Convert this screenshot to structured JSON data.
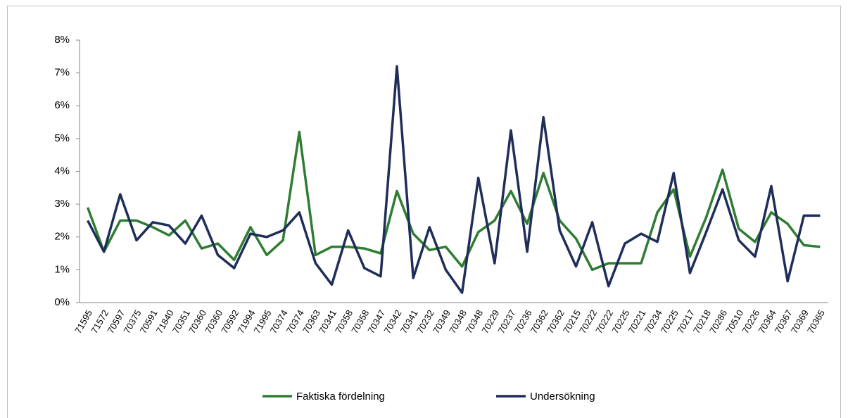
{
  "chart_data": {
    "type": "line",
    "categories": [
      "71595",
      "71572",
      "70597",
      "70375",
      "70591",
      "71840",
      "70351",
      "70360",
      "70360",
      "70592",
      "71994",
      "71995",
      "70374",
      "70374",
      "70363",
      "70341",
      "70358",
      "70358",
      "70347",
      "70342",
      "70341",
      "70232",
      "70349",
      "70348",
      "70348",
      "70229",
      "70237",
      "70236",
      "70362",
      "70362",
      "70215",
      "70222",
      "70222",
      "70225",
      "70221",
      "70234",
      "70225",
      "70217",
      "70218",
      "70286",
      "70510",
      "70226",
      "70364",
      "70367",
      "70369",
      "70365"
    ],
    "series": [
      {
        "name": "Faktiska fördelning",
        "color": "#2e7d32",
        "values": [
          2.9,
          1.55,
          2.5,
          2.5,
          2.3,
          2.05,
          2.5,
          1.65,
          1.8,
          1.3,
          2.3,
          1.45,
          1.9,
          5.2,
          1.45,
          1.7,
          1.7,
          1.65,
          1.5,
          3.4,
          2.1,
          1.6,
          1.7,
          1.1,
          2.15,
          2.5,
          3.4,
          2.4,
          3.95,
          2.5,
          1.95,
          1.0,
          1.2,
          1.2,
          1.2,
          2.75,
          3.45,
          1.4,
          2.6,
          4.05,
          2.25,
          1.85,
          2.75,
          2.4,
          1.75,
          1.7
        ]
      },
      {
        "name": "Undersökning",
        "color": "#1f2d5a",
        "values": [
          2.5,
          1.55,
          3.3,
          1.9,
          2.45,
          2.35,
          1.8,
          2.65,
          1.45,
          1.05,
          2.1,
          2.0,
          2.2,
          2.75,
          1.2,
          0.55,
          2.2,
          1.05,
          0.8,
          7.2,
          0.75,
          2.3,
          1.0,
          0.3,
          3.8,
          1.2,
          5.25,
          1.55,
          5.65,
          2.2,
          1.1,
          2.45,
          0.5,
          1.8,
          2.1,
          1.85,
          3.95,
          0.9,
          2.15,
          3.45,
          1.9,
          1.4,
          3.55,
          0.65,
          2.65,
          2.65
        ]
      }
    ],
    "ylim": [
      0,
      8
    ],
    "yticks": [
      {
        "value": 0,
        "label": "0%"
      },
      {
        "value": 1,
        "label": "1%"
      },
      {
        "value": 2,
        "label": "2%"
      },
      {
        "value": 3,
        "label": "3%"
      },
      {
        "value": 4,
        "label": "4%"
      },
      {
        "value": 5,
        "label": "5%"
      },
      {
        "value": 6,
        "label": "6%"
      },
      {
        "value": 7,
        "label": "7%"
      },
      {
        "value": 8,
        "label": "8%"
      }
    ],
    "legend": "bottom"
  }
}
